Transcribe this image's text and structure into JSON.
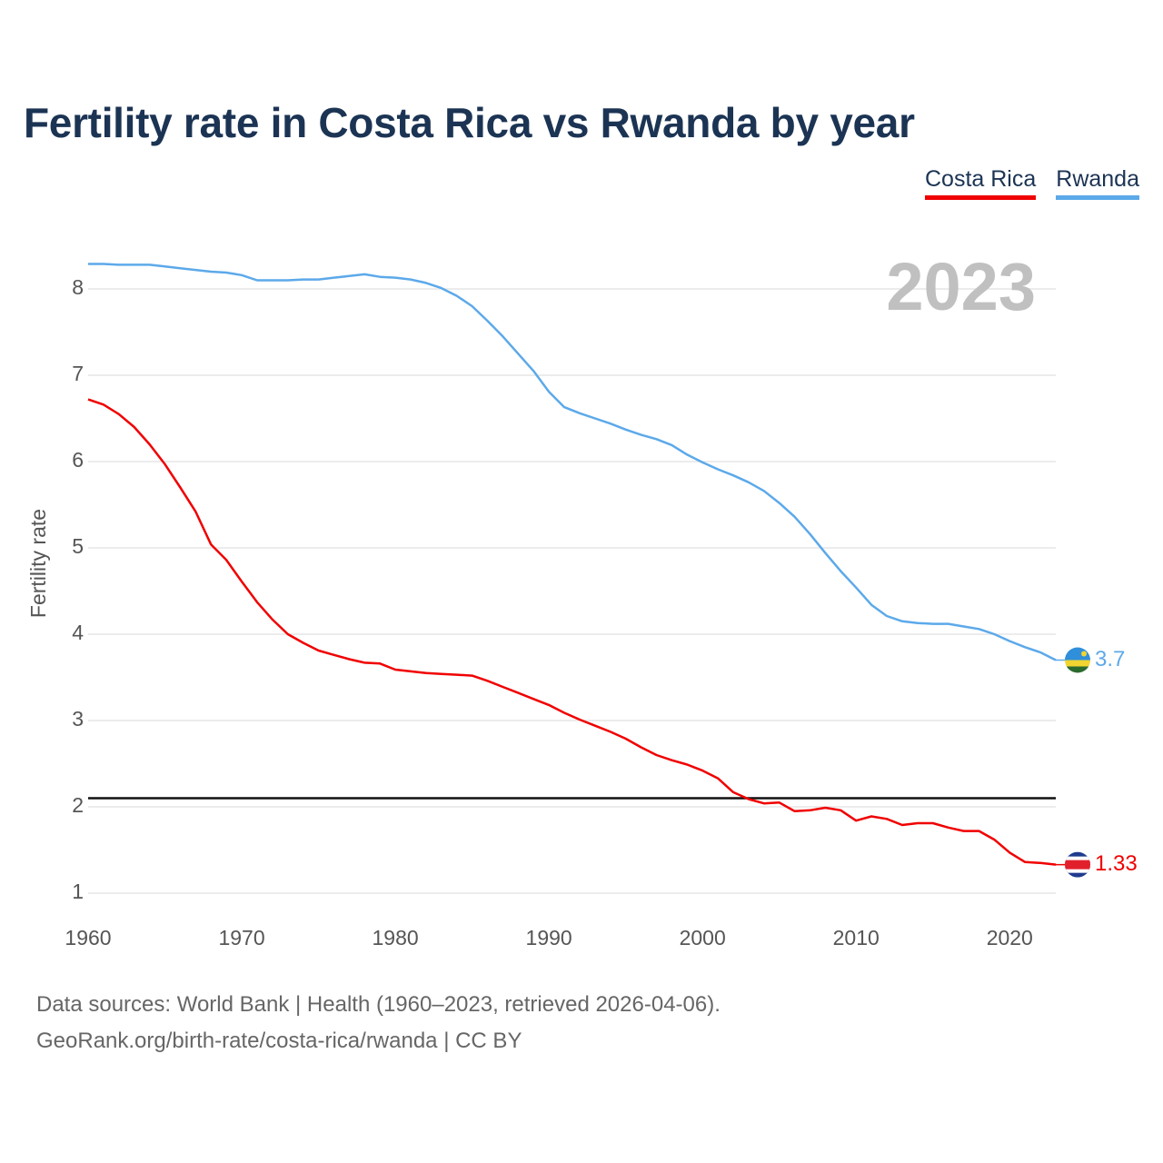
{
  "chart_data": {
    "type": "line",
    "title": "Fertility rate in Costa Rica vs Rwanda by year",
    "xlabel": "",
    "ylabel": "Fertility rate",
    "xlim": [
      1960,
      2023
    ],
    "ylim": [
      0.7,
      8.7
    ],
    "x_ticks": [
      1960,
      1970,
      1980,
      1990,
      2000,
      2010,
      2020
    ],
    "y_ticks": [
      1,
      2,
      3,
      4,
      5,
      6,
      7,
      8
    ],
    "year_label": "2023",
    "replacement_level": 2.1,
    "x": [
      1960,
      1961,
      1962,
      1963,
      1964,
      1965,
      1966,
      1967,
      1968,
      1969,
      1970,
      1971,
      1972,
      1973,
      1974,
      1975,
      1976,
      1977,
      1978,
      1979,
      1980,
      1981,
      1982,
      1983,
      1984,
      1985,
      1986,
      1987,
      1988,
      1989,
      1990,
      1991,
      1992,
      1993,
      1994,
      1995,
      1996,
      1997,
      1998,
      1999,
      2000,
      2001,
      2002,
      2003,
      2004,
      2005,
      2006,
      2007,
      2008,
      2009,
      2010,
      2011,
      2012,
      2013,
      2014,
      2015,
      2016,
      2017,
      2018,
      2019,
      2020,
      2021,
      2022,
      2023
    ],
    "series": [
      {
        "name": "Costa Rica",
        "color": "#f00000",
        "end_label": "1.33",
        "flag": "costa-rica-flag-icon",
        "values": [
          6.72,
          6.66,
          6.55,
          6.4,
          6.2,
          5.97,
          5.7,
          5.42,
          5.04,
          4.86,
          4.61,
          4.37,
          4.17,
          4.0,
          3.9,
          3.81,
          3.76,
          3.71,
          3.67,
          3.66,
          3.59,
          3.57,
          3.55,
          3.54,
          3.53,
          3.52,
          3.46,
          3.39,
          3.32,
          3.25,
          3.18,
          3.09,
          3.01,
          2.94,
          2.87,
          2.79,
          2.69,
          2.6,
          2.54,
          2.49,
          2.42,
          2.33,
          2.17,
          2.09,
          2.04,
          2.05,
          1.95,
          1.96,
          1.99,
          1.96,
          1.84,
          1.89,
          1.86,
          1.79,
          1.81,
          1.81,
          1.76,
          1.72,
          1.72,
          1.62,
          1.47,
          1.36,
          1.35,
          1.33
        ]
      },
      {
        "name": "Rwanda",
        "color": "#5ca9ea",
        "end_label": "3.7",
        "flag": "rwanda-flag-icon",
        "values": [
          8.29,
          8.29,
          8.28,
          8.28,
          8.28,
          8.26,
          8.24,
          8.22,
          8.2,
          8.19,
          8.16,
          8.1,
          8.1,
          8.1,
          8.11,
          8.11,
          8.13,
          8.15,
          8.17,
          8.14,
          8.13,
          8.11,
          8.07,
          8.01,
          7.92,
          7.8,
          7.63,
          7.45,
          7.25,
          7.05,
          6.81,
          6.63,
          6.56,
          6.5,
          6.44,
          6.37,
          6.31,
          6.26,
          6.19,
          6.08,
          5.99,
          5.91,
          5.84,
          5.76,
          5.66,
          5.52,
          5.36,
          5.16,
          4.94,
          4.73,
          4.54,
          4.34,
          4.21,
          4.15,
          4.13,
          4.12,
          4.12,
          4.09,
          4.06,
          4.0,
          3.92,
          3.85,
          3.79,
          3.7
        ]
      }
    ]
  },
  "legend": {
    "costa_rica": "Costa Rica",
    "rwanda": "Rwanda"
  },
  "footer": {
    "line1": "Data sources: World Bank | Health (1960–2023, retrieved 2026-04-06).",
    "line2": "GeoRank.org/birth-rate/costa-rica/rwanda | CC BY"
  }
}
